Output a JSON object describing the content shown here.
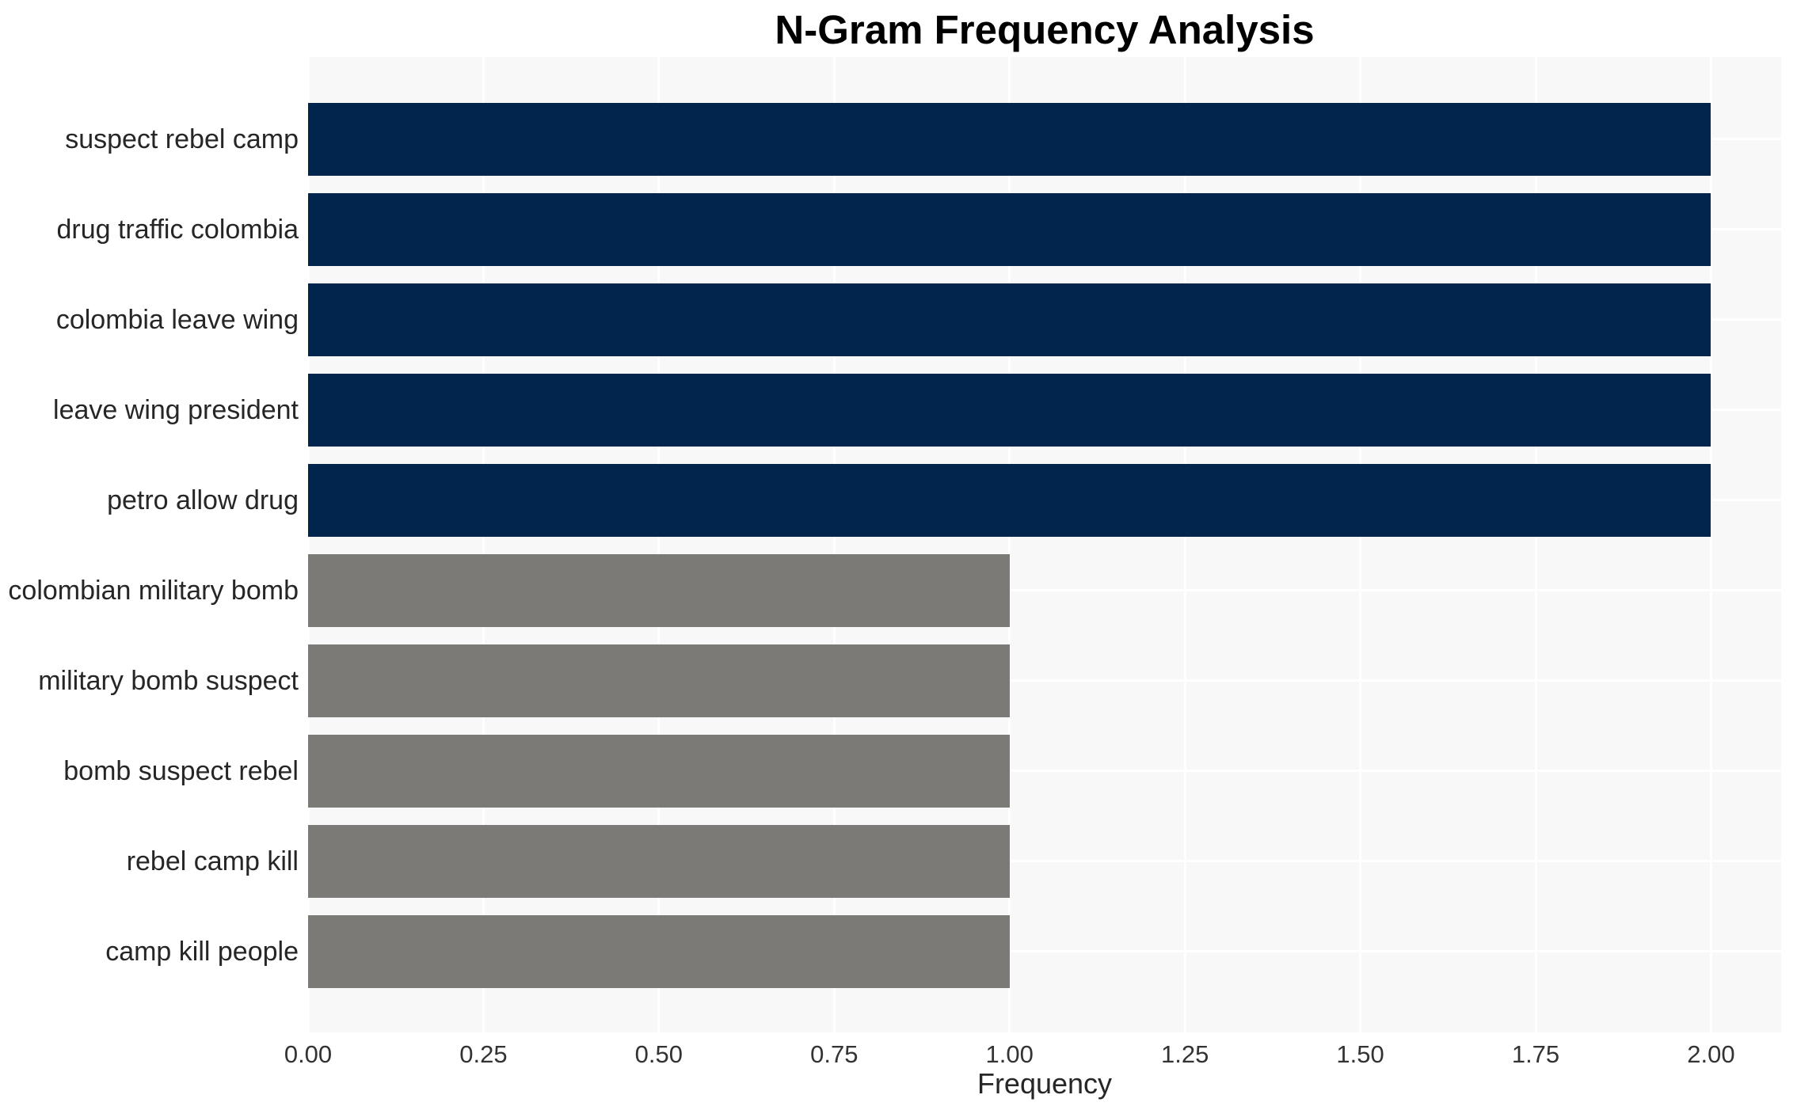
{
  "chart_data": {
    "type": "bar",
    "orientation": "horizontal",
    "title": "N-Gram Frequency Analysis",
    "xlabel": "Frequency",
    "ylabel": "",
    "categories": [
      "suspect rebel camp",
      "drug traffic colombia",
      "colombia leave wing",
      "leave wing president",
      "petro allow drug",
      "colombian military bomb",
      "military bomb suspect",
      "bomb suspect rebel",
      "rebel camp kill",
      "camp kill people"
    ],
    "values": [
      2,
      2,
      2,
      2,
      2,
      1,
      1,
      1,
      1,
      1
    ],
    "bar_colors": [
      "#02254e",
      "#02254e",
      "#02254e",
      "#02254e",
      "#02254e",
      "#7b7a76",
      "#7b7a76",
      "#7b7a76",
      "#7b7a76",
      "#7b7a76"
    ],
    "xlim": [
      0,
      2.1
    ],
    "xticks": [
      "0.00",
      "0.25",
      "0.50",
      "0.75",
      "1.00",
      "1.25",
      "1.50",
      "1.75",
      "2.00"
    ],
    "xtick_values": [
      0,
      0.25,
      0.5,
      0.75,
      1.0,
      1.25,
      1.5,
      1.75,
      2.0
    ],
    "grid": true,
    "legend": null,
    "colors": {
      "high_freq_bar": "#02254e",
      "low_freq_bar": "#7b7a76",
      "plot_background": "#f8f8f8",
      "gridline": "#ffffff",
      "title_text": "#000000",
      "tick_text": "#333333",
      "label_text": "#262626"
    }
  }
}
